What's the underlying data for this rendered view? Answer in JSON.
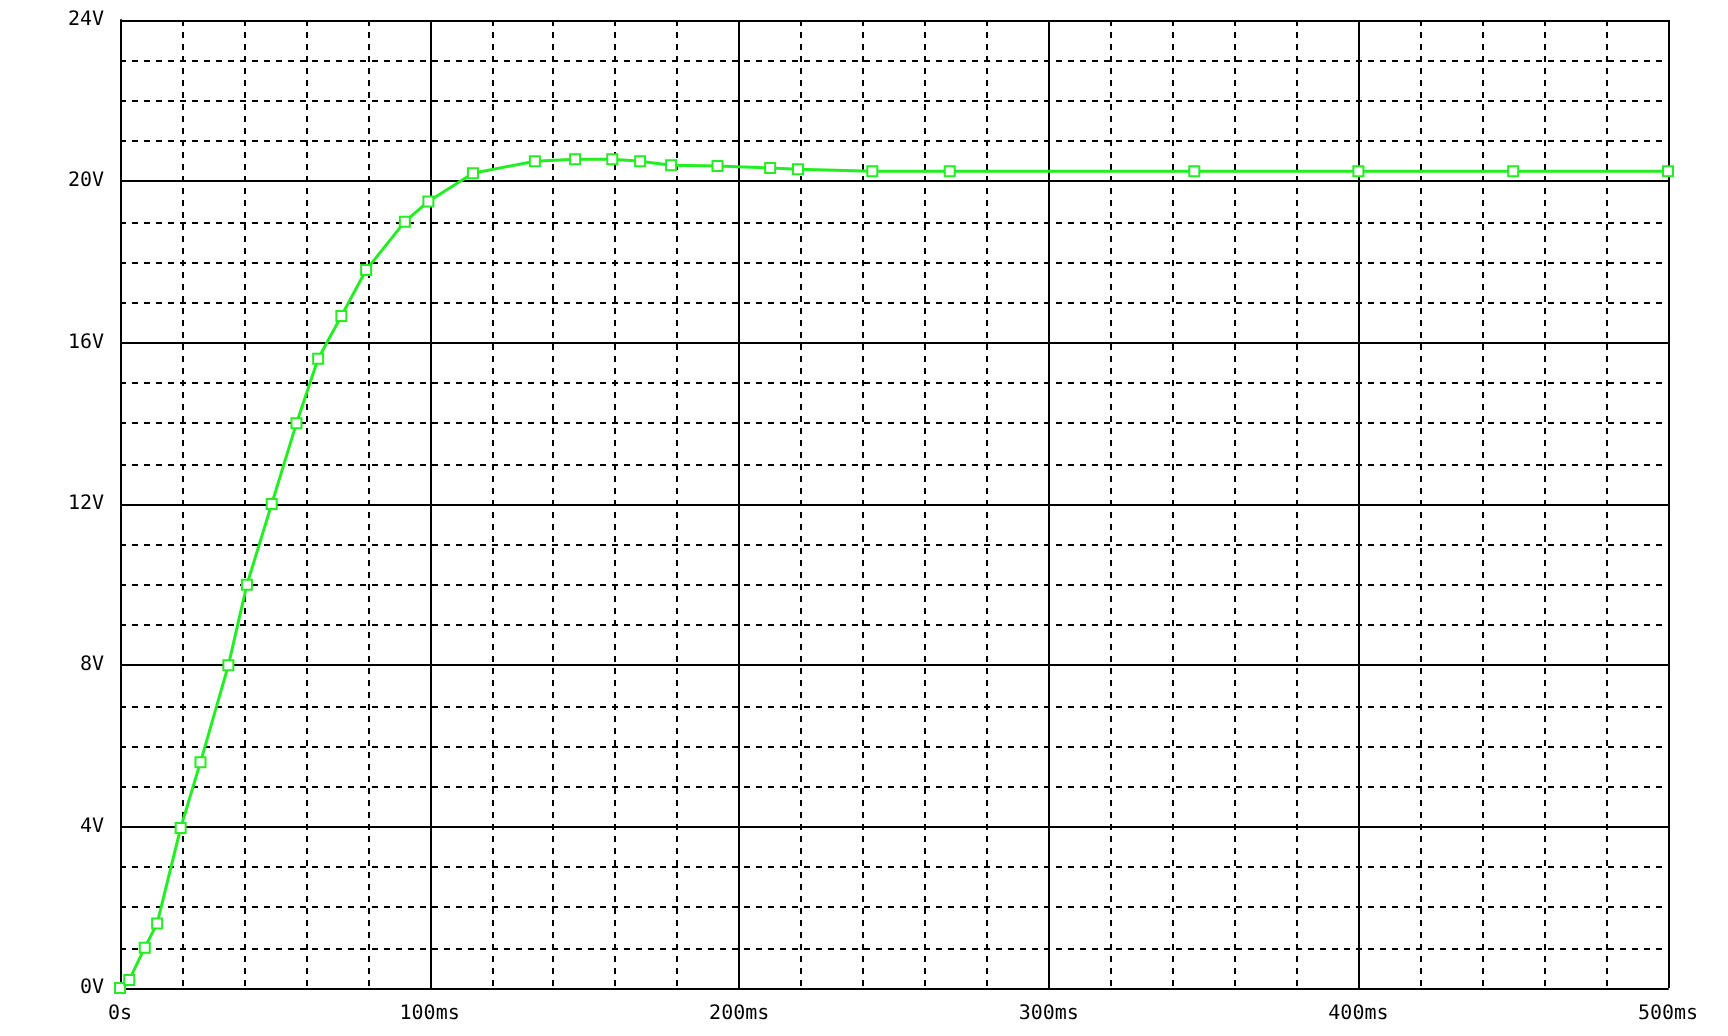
{
  "chart_data": {
    "type": "line",
    "x": [
      0,
      3,
      8,
      12,
      19.6,
      26,
      35,
      41,
      49,
      57,
      64,
      71.5,
      79.5,
      92,
      99.6,
      114,
      134,
      147,
      159,
      168,
      178,
      193,
      210,
      219,
      243,
      268,
      347,
      400,
      450,
      500
    ],
    "series": [
      {
        "color": "#22ee22",
        "values": [
          0,
          0.2,
          1.0,
          1.6,
          3.97,
          5.6,
          8.0,
          10.0,
          12.0,
          14.0,
          15.6,
          16.66,
          17.8,
          19.0,
          19.5,
          20.2,
          20.5,
          20.55,
          20.55,
          20.5,
          20.4,
          20.38,
          20.33,
          20.3,
          20.25,
          20.25,
          20.25,
          20.25,
          20.25,
          20.25
        ]
      }
    ],
    "xlim": [
      0,
      500
    ],
    "xticks": [
      {
        "value": 0,
        "label": "0s"
      },
      {
        "value": 100,
        "label": "100ms"
      },
      {
        "value": 200,
        "label": "200ms"
      },
      {
        "value": 300,
        "label": "300ms"
      },
      {
        "value": 400,
        "label": "400ms"
      },
      {
        "value": 500,
        "label": "500ms"
      }
    ],
    "ylim": [
      0,
      24
    ],
    "yticks": [
      {
        "value": 0,
        "label": "0V"
      },
      {
        "value": 4,
        "label": "4V"
      },
      {
        "value": 8,
        "label": "8V"
      },
      {
        "value": 12,
        "label": "12V"
      },
      {
        "value": 16,
        "label": "16V"
      },
      {
        "value": 20,
        "label": "20V"
      },
      {
        "value": 24,
        "label": "24V"
      }
    ],
    "grid": true,
    "marker": "square",
    "line_style": "solid"
  }
}
